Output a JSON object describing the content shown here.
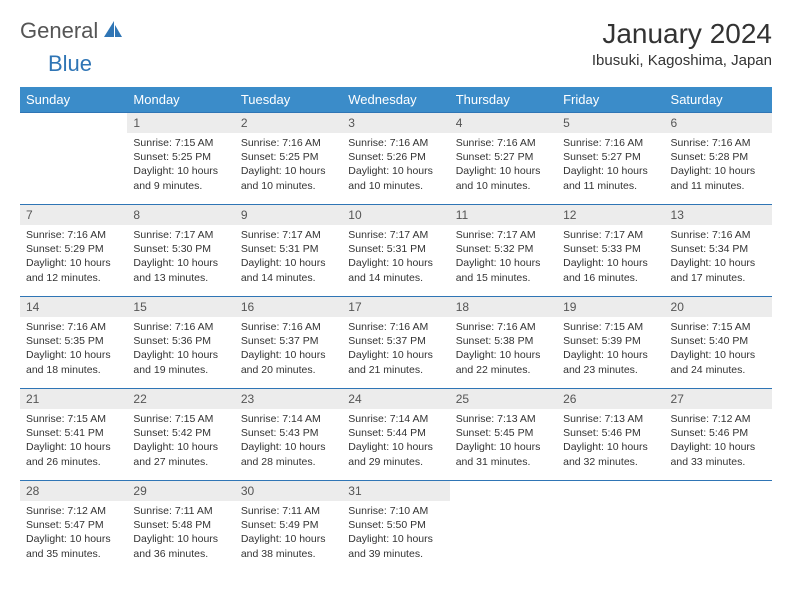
{
  "brand": {
    "text1": "General",
    "text2": "Blue"
  },
  "title": "January 2024",
  "location": "Ibusuki, Kagoshima, Japan",
  "colors": {
    "header_bg": "#3b8cc9",
    "header_text": "#ffffff",
    "row_border": "#2f75b5",
    "daynum_bg": "#ececec",
    "body_text": "#333333",
    "logo_gray": "#555555",
    "logo_blue": "#2f75b5",
    "page_bg": "#ffffff"
  },
  "typography": {
    "title_fontsize": 28,
    "location_fontsize": 15,
    "weekday_fontsize": 13,
    "daynum_fontsize": 12,
    "cell_fontsize": 10.5
  },
  "weekdays": [
    "Sunday",
    "Monday",
    "Tuesday",
    "Wednesday",
    "Thursday",
    "Friday",
    "Saturday"
  ],
  "weeks": [
    [
      null,
      {
        "n": "1",
        "sr": "7:15 AM",
        "ss": "5:25 PM",
        "dl": "10 hours and 9 minutes."
      },
      {
        "n": "2",
        "sr": "7:16 AM",
        "ss": "5:25 PM",
        "dl": "10 hours and 10 minutes."
      },
      {
        "n": "3",
        "sr": "7:16 AM",
        "ss": "5:26 PM",
        "dl": "10 hours and 10 minutes."
      },
      {
        "n": "4",
        "sr": "7:16 AM",
        "ss": "5:27 PM",
        "dl": "10 hours and 10 minutes."
      },
      {
        "n": "5",
        "sr": "7:16 AM",
        "ss": "5:27 PM",
        "dl": "10 hours and 11 minutes."
      },
      {
        "n": "6",
        "sr": "7:16 AM",
        "ss": "5:28 PM",
        "dl": "10 hours and 11 minutes."
      }
    ],
    [
      {
        "n": "7",
        "sr": "7:16 AM",
        "ss": "5:29 PM",
        "dl": "10 hours and 12 minutes."
      },
      {
        "n": "8",
        "sr": "7:17 AM",
        "ss": "5:30 PM",
        "dl": "10 hours and 13 minutes."
      },
      {
        "n": "9",
        "sr": "7:17 AM",
        "ss": "5:31 PM",
        "dl": "10 hours and 14 minutes."
      },
      {
        "n": "10",
        "sr": "7:17 AM",
        "ss": "5:31 PM",
        "dl": "10 hours and 14 minutes."
      },
      {
        "n": "11",
        "sr": "7:17 AM",
        "ss": "5:32 PM",
        "dl": "10 hours and 15 minutes."
      },
      {
        "n": "12",
        "sr": "7:17 AM",
        "ss": "5:33 PM",
        "dl": "10 hours and 16 minutes."
      },
      {
        "n": "13",
        "sr": "7:16 AM",
        "ss": "5:34 PM",
        "dl": "10 hours and 17 minutes."
      }
    ],
    [
      {
        "n": "14",
        "sr": "7:16 AM",
        "ss": "5:35 PM",
        "dl": "10 hours and 18 minutes."
      },
      {
        "n": "15",
        "sr": "7:16 AM",
        "ss": "5:36 PM",
        "dl": "10 hours and 19 minutes."
      },
      {
        "n": "16",
        "sr": "7:16 AM",
        "ss": "5:37 PM",
        "dl": "10 hours and 20 minutes."
      },
      {
        "n": "17",
        "sr": "7:16 AM",
        "ss": "5:37 PM",
        "dl": "10 hours and 21 minutes."
      },
      {
        "n": "18",
        "sr": "7:16 AM",
        "ss": "5:38 PM",
        "dl": "10 hours and 22 minutes."
      },
      {
        "n": "19",
        "sr": "7:15 AM",
        "ss": "5:39 PM",
        "dl": "10 hours and 23 minutes."
      },
      {
        "n": "20",
        "sr": "7:15 AM",
        "ss": "5:40 PM",
        "dl": "10 hours and 24 minutes."
      }
    ],
    [
      {
        "n": "21",
        "sr": "7:15 AM",
        "ss": "5:41 PM",
        "dl": "10 hours and 26 minutes."
      },
      {
        "n": "22",
        "sr": "7:15 AM",
        "ss": "5:42 PM",
        "dl": "10 hours and 27 minutes."
      },
      {
        "n": "23",
        "sr": "7:14 AM",
        "ss": "5:43 PM",
        "dl": "10 hours and 28 minutes."
      },
      {
        "n": "24",
        "sr": "7:14 AM",
        "ss": "5:44 PM",
        "dl": "10 hours and 29 minutes."
      },
      {
        "n": "25",
        "sr": "7:13 AM",
        "ss": "5:45 PM",
        "dl": "10 hours and 31 minutes."
      },
      {
        "n": "26",
        "sr": "7:13 AM",
        "ss": "5:46 PM",
        "dl": "10 hours and 32 minutes."
      },
      {
        "n": "27",
        "sr": "7:12 AM",
        "ss": "5:46 PM",
        "dl": "10 hours and 33 minutes."
      }
    ],
    [
      {
        "n": "28",
        "sr": "7:12 AM",
        "ss": "5:47 PM",
        "dl": "10 hours and 35 minutes."
      },
      {
        "n": "29",
        "sr": "7:11 AM",
        "ss": "5:48 PM",
        "dl": "10 hours and 36 minutes."
      },
      {
        "n": "30",
        "sr": "7:11 AM",
        "ss": "5:49 PM",
        "dl": "10 hours and 38 minutes."
      },
      {
        "n": "31",
        "sr": "7:10 AM",
        "ss": "5:50 PM",
        "dl": "10 hours and 39 minutes."
      },
      null,
      null,
      null
    ]
  ],
  "labels": {
    "sunrise": "Sunrise:",
    "sunset": "Sunset:",
    "daylight": "Daylight:"
  }
}
